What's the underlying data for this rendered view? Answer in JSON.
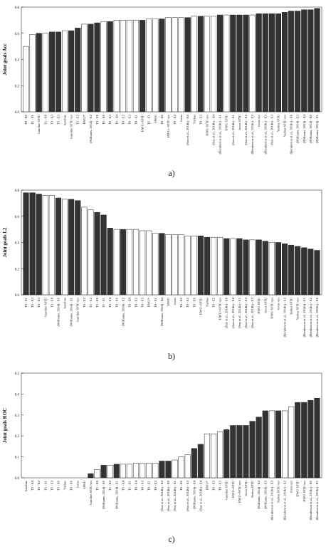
{
  "chart_data": [
    {
      "type": "bar",
      "caption": "a)",
      "y_label": "Joint goals Acc",
      "categories": [
        "T9 - E0",
        "T1 - E1",
        "baseline SJTU",
        "T1 - E0",
        "T3 - E3",
        "T5 - E3",
        "baseline",
        "baseline SJTU sys",
        "T5 - E2",
        "HWU*",
        "(Williams, 2014) - E2",
        "T3 - E0",
        "T6 - E0",
        "T6 - E3",
        "T6 - E4",
        "T8 - E2",
        "T8 - E3",
        "T8 - E1",
        "HWU+SJTU",
        "T6 - E1",
        "HWU",
        "T8 - E0",
        "HWU+ SJTU sys",
        "T9 - E2",
        "focus",
        "(Sun et al., 2014b) - E0",
        "Yarbus",
        "T9 - E3",
        "HWU SJTU sys",
        "(Sun et al., 2014b) - E4",
        "(Henderson et al., 2014c) - E1",
        "HWU SJTU",
        "(Sun et al., 2014b) - E1",
        "focus SJTU",
        "(Sun et al., 2014b) - E2",
        "(Henderson et al., 2014c) - E2",
        "focus sys",
        "(Henderson et al., 2014c) - E3",
        "(Sun et al., 2014b) - E3",
        "Yarbus SJTU",
        "Yarbus SJTU sys",
        "(Henderson et al., 2014c) - E0",
        "(Williams, 2014) - E3",
        "(Williams, 2014) - E4",
        "(Williams, 2014) - E0",
        "(Williams, 2014) - E1"
      ],
      "values": [
        0.5,
        0.59,
        0.6,
        0.6,
        0.61,
        0.61,
        0.62,
        0.62,
        0.64,
        0.67,
        0.67,
        0.68,
        0.69,
        0.69,
        0.7,
        0.7,
        0.7,
        0.7,
        0.7,
        0.71,
        0.71,
        0.71,
        0.72,
        0.72,
        0.72,
        0.72,
        0.73,
        0.73,
        0.73,
        0.73,
        0.74,
        0.74,
        0.74,
        0.74,
        0.74,
        0.74,
        0.75,
        0.75,
        0.75,
        0.75,
        0.76,
        0.77,
        0.77,
        0.78,
        0.78,
        0.79
      ],
      "colors": [
        "#fff",
        "#fff",
        "#333",
        "#fff",
        "#333",
        "#333",
        "#fff",
        "#333",
        "#333",
        "#fff",
        "#333",
        "#333",
        "#fff",
        "#333",
        "#fff",
        "#fff",
        "#fff",
        "#fff",
        "#333",
        "#fff",
        "#fff",
        "#333",
        "#fff",
        "#fff",
        "#fff",
        "#333",
        "#fff",
        "#333",
        "#fff",
        "#fff",
        "#333",
        "#fff",
        "#333",
        "#333",
        "#333",
        "#fff",
        "#333",
        "#333",
        "#333",
        "#333",
        "#333",
        "#333",
        "#333",
        "#333",
        "#333",
        "#333"
      ],
      "ylim": [
        0,
        0.8
      ],
      "yticks": [
        {
          "value": 0,
          "label": "0.0"
        },
        0.2,
        0.4,
        0.6,
        0.8
      ]
    },
    {
      "type": "bar",
      "caption": "b)",
      "y_label": "Joint goals L2",
      "categories": [
        "T5 - E1",
        "T5 - E3",
        "T3 - E3",
        "baseline SJTU",
        "T3 - E0",
        "(Williams, 2014) - E0",
        "baseline",
        "(Williams, 2014) - E1",
        "baseline SJTU sys",
        "T5 - E2",
        "T1 - E2",
        "T1 - E0",
        "T1 - E1",
        "T5 - E4",
        "T8 - E0",
        "(Williams, 2014) - E2",
        "T8 - E4",
        "T8 - E2",
        "T8 - E3",
        "HWU*",
        "T8 - E1",
        "(Williams, 2014) - E4",
        "HWU",
        "focus",
        "T6 - E0",
        "T6 - E3",
        "T9 - E0",
        "HWU+SJTU",
        "Yarbus",
        "T9 - E2",
        "HWU+SJTU sys",
        "(Sun et al., 2014b) - E0",
        "(Sun et al., 2014b) - E4",
        "(Sun et al., 2014b) - E1",
        "(Sun et al., 2014b) - E2",
        "(Sun et al., 2014b) - E3",
        "HWU SJTU",
        "focus SJTU",
        "HWU SJTU sys",
        "focus sys",
        "(Henderson et al., 2014c) - E3",
        "Yarbus SJTU",
        "Yarbus SJTU sys",
        "(Henderson et al., 2014c) - E1",
        "(Henderson et al., 2014c) - E2",
        "(Henderson et al., 2014c) - E0"
      ],
      "values": [
        0.78,
        0.78,
        0.77,
        0.76,
        0.76,
        0.74,
        0.73,
        0.73,
        0.72,
        0.67,
        0.65,
        0.63,
        0.61,
        0.51,
        0.5,
        0.5,
        0.5,
        0.5,
        0.49,
        0.49,
        0.47,
        0.47,
        0.46,
        0.46,
        0.46,
        0.45,
        0.45,
        0.45,
        0.44,
        0.44,
        0.44,
        0.43,
        0.43,
        0.43,
        0.42,
        0.42,
        0.42,
        0.41,
        0.4,
        0.4,
        0.39,
        0.38,
        0.37,
        0.36,
        0.35,
        0.34
      ],
      "colors": [
        "#333",
        "#333",
        "#333",
        "#fff",
        "#fff",
        "#333",
        "#fff",
        "#333",
        "#333",
        "#fff",
        "#fff",
        "#333",
        "#333",
        "#333",
        "#fff",
        "#333",
        "#fff",
        "#fff",
        "#fff",
        "#fff",
        "#fff",
        "#333",
        "#fff",
        "#fff",
        "#fff",
        "#fff",
        "#fff",
        "#333",
        "#333",
        "#fff",
        "#fff",
        "#333",
        "#fff",
        "#333",
        "#333",
        "#fff",
        "#333",
        "#333",
        "#fff",
        "#333",
        "#333",
        "#333",
        "#333",
        "#333",
        "#333",
        "#333"
      ],
      "ylim": [
        0,
        0.8
      ],
      "yticks": [
        {
          "value": 0,
          "label": "0.0"
        },
        0.2,
        0.4,
        0.6,
        0.8
      ]
    },
    {
      "type": "bar",
      "caption": "c)",
      "y_label": "Joint goals ROC",
      "categories": [
        "baseline",
        "T3 - E4",
        "T5 - E2",
        "T5 - E1",
        "T5 - E3",
        "T3 - E0",
        "Yarbus",
        "T9 - E0",
        "focus",
        "HWU",
        "baseline SJTU sys",
        "T1 - E0",
        "(Williams, 2014) - E0",
        "T1 - E2",
        "(Williams, 2014) - E1",
        "T5 - E4",
        "T1 - E1",
        "T8 - E4",
        "T8 - E3",
        "T8 - E1",
        "T9 - E3",
        "(Sun et al., 2014b) - E2",
        "(Sun et al., 2014b) - E0",
        "(Sun et al., 2014b) - E1",
        "T6 - E0",
        "(Sun et al., 2014b) - E3",
        "(Williams, 2014) - E4",
        "(Sun et al., 2014b) - E4",
        "HWU*",
        "T6 - E3",
        "T9 - E2",
        "baseline SJTU",
        "HWU+SJTU",
        "HWU+SJTU sys",
        "focus SJTU",
        "Yarbus SJTU",
        "(Williams, 2014) - E2",
        "(Williams, 2014) - E3",
        "(Henderson et al., 2014c) - E3",
        "Yarbus SJTU sys",
        "(Henderson et al., 2014c) - E2",
        "focus sys",
        "HWU SJTU",
        "HWU SJTU sys",
        "(Henderson et al., 2014c) - E0",
        "(Henderson et al., 2014c) - E1"
      ],
      "values": [
        0,
        0,
        0,
        0,
        0,
        0,
        0,
        0,
        0,
        0,
        0.02,
        0.04,
        0.06,
        0.06,
        0.065,
        0.065,
        0.065,
        0.07,
        0.07,
        0.07,
        0.07,
        0.08,
        0.08,
        0.085,
        0.1,
        0.11,
        0.14,
        0.16,
        0.21,
        0.21,
        0.22,
        0.23,
        0.25,
        0.25,
        0.25,
        0.27,
        0.29,
        0.32,
        0.32,
        0.32,
        0.32,
        0.34,
        0.36,
        0.36,
        0.37,
        0.38
      ],
      "colors": [
        "#333",
        "#333",
        "#333",
        "#333",
        "#333",
        "#333",
        "#333",
        "#333",
        "#333",
        "#333",
        "#333",
        "#fff",
        "#333",
        "#fff",
        "#333",
        "#fff",
        "#fff",
        "#fff",
        "#fff",
        "#fff",
        "#fff",
        "#333",
        "#333",
        "#fff",
        "#fff",
        "#fff",
        "#333",
        "#333",
        "#fff",
        "#fff",
        "#fff",
        "#333",
        "#333",
        "#333",
        "#333",
        "#333",
        "#333",
        "#333",
        "#fff",
        "#333",
        "#fff",
        "#fff",
        "#333",
        "#333",
        "#333",
        "#333"
      ],
      "ylim": [
        0,
        0.5
      ],
      "yticks": [
        {
          "value": 0,
          "label": "0.0"
        },
        0.1,
        0.2,
        0.3,
        0.4,
        0.5
      ]
    }
  ]
}
